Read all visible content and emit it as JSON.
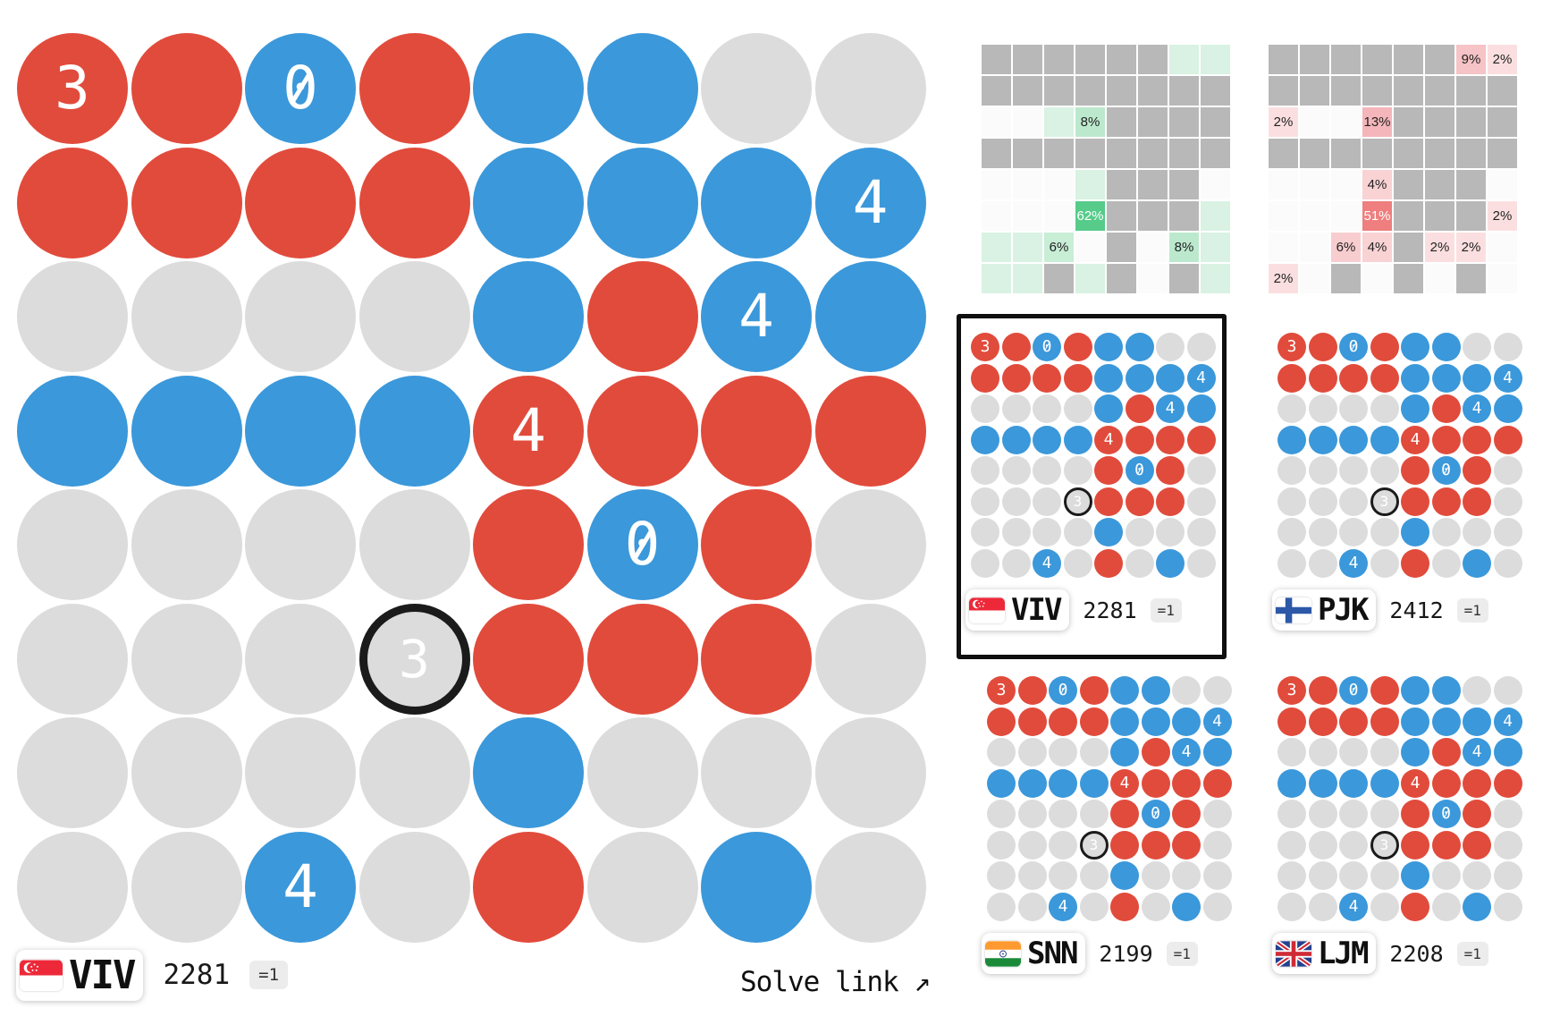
{
  "palette": {
    "cell_red": "#e14b3c",
    "cell_blue": "#3b98da",
    "cell_empty": "#dcdcdc",
    "cell_number_text": "#ffffff",
    "outline_color": "#1b1b1b",
    "selection_border": "#0f0f0f",
    "heatmap_given": "#b8b8b8",
    "heatmap_blank": "#fbfbfb",
    "green_tint": "#d9f2e3",
    "red_tint": "#fbdfe0",
    "green_scale": {
      "6%": "#c8eed6",
      "8%": "#bce9cd",
      "62%": "#57cb8a"
    },
    "red_scale": {
      "2%": "#fbdfe0",
      "4%": "#f9d2d4",
      "6%": "#f8cdcf",
      "9%": "#f6c3c6",
      "13%": "#f4b6ba",
      "51%": "#ef7e7e"
    }
  },
  "board": {
    "rows": 8,
    "cols": 8,
    "cells": [
      [
        "R3",
        "R",
        "B0",
        "R",
        "B",
        "B",
        "E",
        "E"
      ],
      [
        "R",
        "R",
        "R",
        "R",
        "B",
        "B",
        "B",
        "B4"
      ],
      [
        "E",
        "E",
        "E",
        "E",
        "B",
        "R",
        "B4",
        "B"
      ],
      [
        "B",
        "B",
        "B",
        "B",
        "R4",
        "R",
        "R",
        "R"
      ],
      [
        "E",
        "E",
        "E",
        "E",
        "R",
        "B0",
        "R",
        "E"
      ],
      [
        "E",
        "E",
        "E",
        "O3",
        "R",
        "R",
        "R",
        "E"
      ],
      [
        "E",
        "E",
        "E",
        "E",
        "B",
        "E",
        "E",
        "E"
      ],
      [
        "E",
        "E",
        "B4",
        "E",
        "R",
        "E",
        "B",
        "E"
      ]
    ]
  },
  "heatmaps": {
    "green": [
      [
        "g",
        "g",
        "g",
        "g",
        "g",
        "g",
        "t",
        "t"
      ],
      [
        "g",
        "g",
        "g",
        "g",
        "g",
        "g",
        "g",
        "g"
      ],
      [
        "w",
        "w",
        "t",
        "8%",
        "g",
        "g",
        "g",
        "g"
      ],
      [
        "g",
        "g",
        "g",
        "g",
        "g",
        "g",
        "g",
        "g"
      ],
      [
        "w",
        "w",
        "w",
        "t",
        "g",
        "g",
        "g",
        "w"
      ],
      [
        "w",
        "w",
        "w",
        "62%",
        "g",
        "g",
        "g",
        "t"
      ],
      [
        "t",
        "t",
        "6%",
        "w",
        "g",
        "w",
        "8%",
        "t"
      ],
      [
        "t",
        "t",
        "g",
        "t",
        "g",
        "w",
        "g",
        "t"
      ]
    ],
    "red": [
      [
        "g",
        "g",
        "g",
        "g",
        "g",
        "g",
        "9%",
        "2%"
      ],
      [
        "g",
        "g",
        "g",
        "g",
        "g",
        "g",
        "g",
        "g"
      ],
      [
        "2%",
        "w",
        "w",
        "13%",
        "g",
        "g",
        "g",
        "g"
      ],
      [
        "g",
        "g",
        "g",
        "g",
        "g",
        "g",
        "g",
        "g"
      ],
      [
        "w",
        "w",
        "w",
        "4%",
        "g",
        "g",
        "g",
        "w"
      ],
      [
        "w",
        "w",
        "w",
        "51%",
        "g",
        "g",
        "g",
        "2%"
      ],
      [
        "w",
        "w",
        "6%",
        "4%",
        "g",
        "2%",
        "2%",
        "w"
      ],
      [
        "2%",
        "w",
        "g",
        "w",
        "g",
        "w",
        "g",
        "w"
      ]
    ]
  },
  "players": [
    {
      "code": "VIV",
      "flag": "sg",
      "score": "2281",
      "badge": "=1",
      "selected": true
    },
    {
      "code": "PJK",
      "flag": "fi",
      "score": "2412",
      "badge": "=1",
      "selected": false
    },
    {
      "code": "SNN",
      "flag": "in",
      "score": "2199",
      "badge": "=1",
      "selected": false
    },
    {
      "code": "LJM",
      "flag": "uk",
      "score": "2208",
      "badge": "=1",
      "selected": false
    }
  ],
  "footer_player": {
    "code": "VIV",
    "flag": "sg",
    "score": "2281",
    "badge": "=1"
  },
  "footer": {
    "solve_link_label": "Solve link",
    "solve_link_arrow": "↗"
  }
}
